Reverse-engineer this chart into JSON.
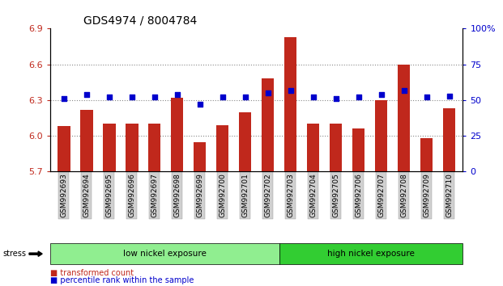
{
  "title": "GDS4974 / 8004784",
  "samples": [
    "GSM992693",
    "GSM992694",
    "GSM992695",
    "GSM992696",
    "GSM992697",
    "GSM992698",
    "GSM992699",
    "GSM992700",
    "GSM992701",
    "GSM992702",
    "GSM992703",
    "GSM992704",
    "GSM992705",
    "GSM992706",
    "GSM992707",
    "GSM992708",
    "GSM992709",
    "GSM992710"
  ],
  "red_values": [
    6.08,
    6.22,
    6.1,
    6.1,
    6.1,
    6.32,
    5.95,
    6.09,
    6.2,
    6.48,
    6.83,
    6.1,
    6.1,
    6.06,
    6.3,
    6.6,
    5.98,
    6.23
  ],
  "blue_values": [
    51,
    54,
    52,
    52,
    52,
    54,
    47,
    52,
    52,
    55,
    57,
    52,
    51,
    52,
    54,
    57,
    52,
    53
  ],
  "ylim_left": [
    5.7,
    6.9
  ],
  "ylim_right": [
    0,
    100
  ],
  "yticks_left": [
    5.7,
    6.0,
    6.3,
    6.6,
    6.9
  ],
  "yticks_right": [
    0,
    25,
    50,
    75,
    100
  ],
  "bar_color": "#c0281c",
  "dot_color": "#0000cc",
  "group1_label": "low nickel exposure",
  "group2_label": "high nickel exposure",
  "group1_color": "#90ee90",
  "group2_color": "#32cd32",
  "group1_count": 10,
  "stress_label": "stress",
  "legend_red": "transformed count",
  "legend_blue": "percentile rank within the sample",
  "bg_color": "#ffffff",
  "grid_color": "#888888"
}
